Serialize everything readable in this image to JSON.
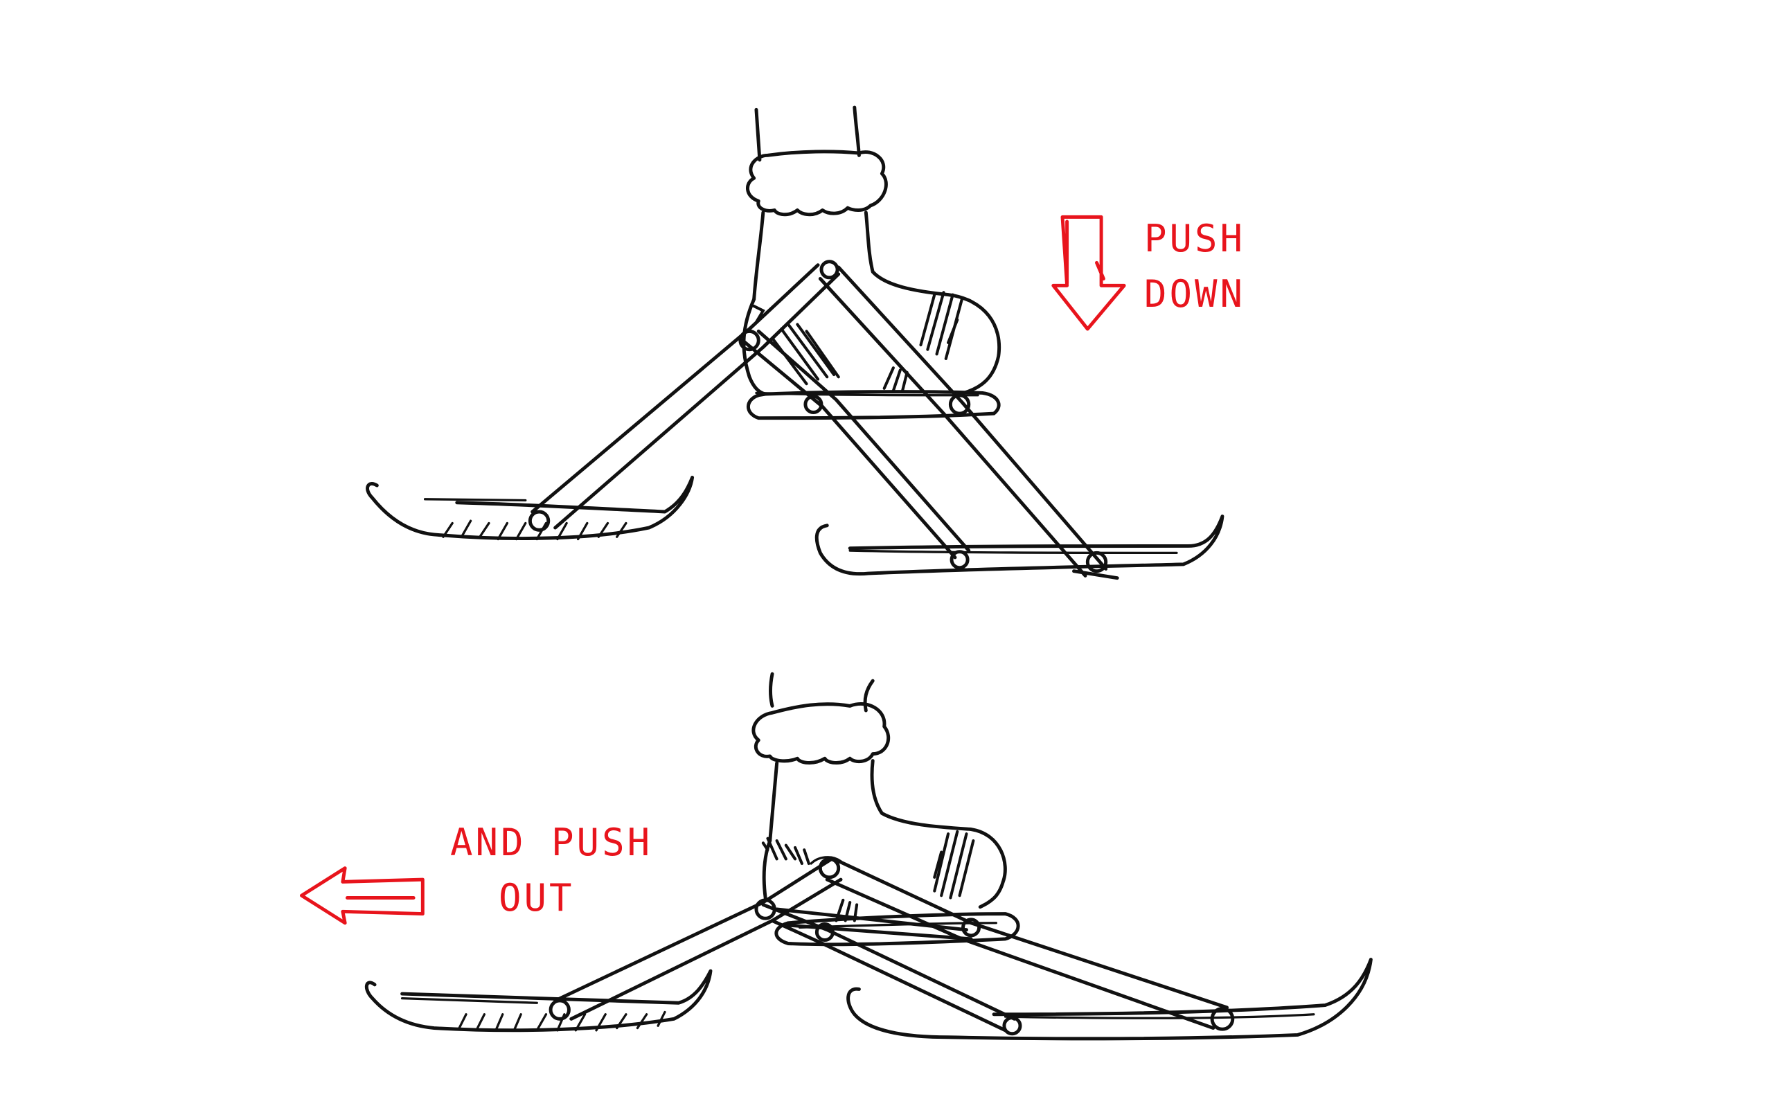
{
  "annotations": {
    "push_down": [
      "PUSH",
      "DOWN"
    ],
    "push_out": [
      "AND PUSH",
      "OUT"
    ]
  },
  "colors": {
    "ink": "#111111",
    "annotation": "#e8141c",
    "background": "#ffffff"
  }
}
